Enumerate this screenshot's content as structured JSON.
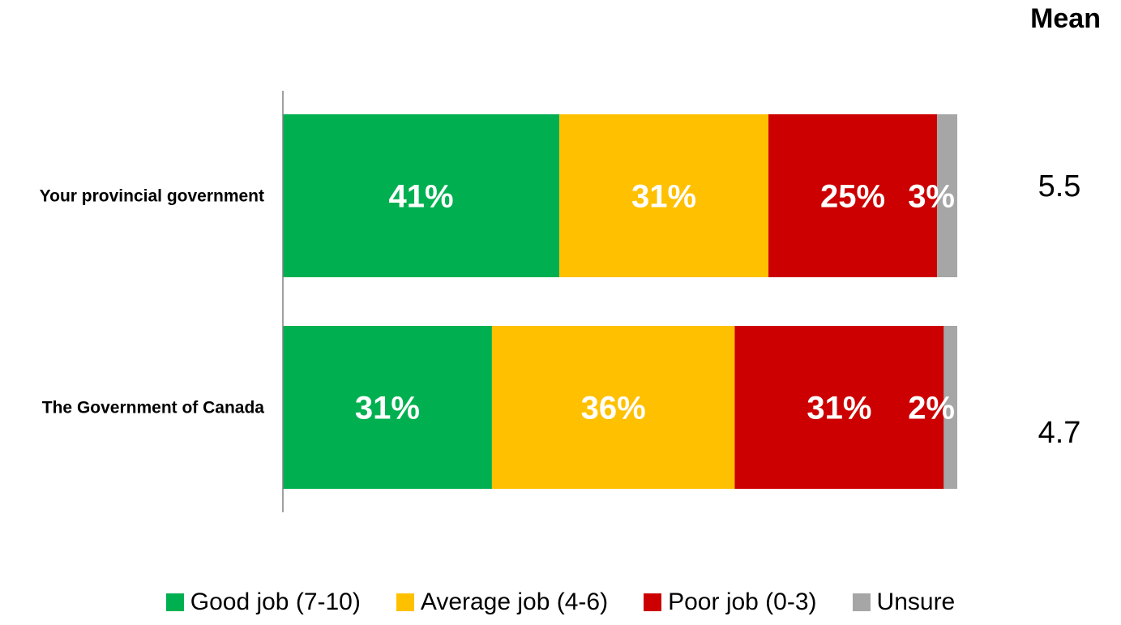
{
  "mean_header": "Mean",
  "colors": {
    "good": "#00B050",
    "average": "#FFC000",
    "poor": "#CC0000",
    "unsure": "#A6A6A6",
    "segment_label": "#FFFFFF",
    "axis": "#808080"
  },
  "chart_data": {
    "type": "bar",
    "orientation": "horizontal",
    "stacked": true,
    "xlim": [
      0,
      100
    ],
    "grid": false,
    "legend_position": "bottom",
    "categories": [
      "Your provincial government",
      "The Government of Canada"
    ],
    "series": [
      {
        "name": "Good job (7-10)",
        "color_key": "good",
        "values": [
          41,
          31
        ],
        "labels": [
          "41%",
          "31%"
        ]
      },
      {
        "name": "Average job (4-6)",
        "color_key": "average",
        "values": [
          31,
          36
        ],
        "labels": [
          "31%",
          "36%"
        ]
      },
      {
        "name": "Poor job (0-3)",
        "color_key": "poor",
        "values": [
          25,
          31
        ],
        "labels": [
          "25%",
          "31%"
        ]
      },
      {
        "name": "Unsure",
        "color_key": "unsure",
        "values": [
          3,
          2
        ],
        "labels": [
          "3%",
          "2%"
        ]
      }
    ],
    "means": [
      "5.5",
      "4.7"
    ]
  }
}
